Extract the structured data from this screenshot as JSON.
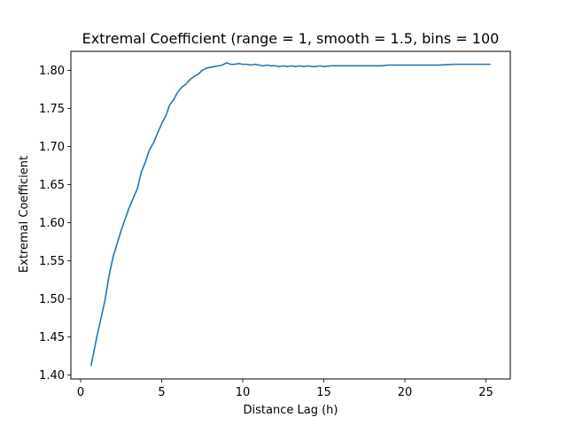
{
  "chart_data": {
    "type": "line",
    "title": "Extremal Coefficient (range = 1, smooth = 1.5, bins = 100",
    "xlabel": "Distance Lag (h)",
    "ylabel": "Extremal Coefficient",
    "xlim": [
      -0.6,
      26.5
    ],
    "ylim": [
      1.395,
      1.825
    ],
    "xticks": [
      0,
      5,
      10,
      15,
      20,
      25
    ],
    "xtick_labels": [
      "0",
      "5",
      "10",
      "15",
      "20",
      "25"
    ],
    "yticks": [
      1.4,
      1.45,
      1.5,
      1.55,
      1.6,
      1.65,
      1.7,
      1.75,
      1.8
    ],
    "ytick_labels": [
      "1.40",
      "1.45",
      "1.50",
      "1.55",
      "1.60",
      "1.65",
      "1.70",
      "1.75",
      "1.80"
    ],
    "grid": false,
    "line_color": "#1f77b4",
    "series": [
      {
        "x": [
          0.65,
          1.0,
          1.5,
          1.75,
          2.0,
          2.5,
          3.0,
          3.5,
          3.75,
          4.0,
          4.25,
          4.5,
          4.75,
          5.0,
          5.25,
          5.5,
          5.75,
          6.0,
          6.25,
          6.5,
          6.75,
          7.0,
          7.25,
          7.5,
          7.75,
          8.0,
          8.25,
          8.5,
          8.75,
          9.0,
          9.25,
          9.5,
          9.75,
          10.0,
          10.25,
          10.5,
          10.75,
          11.0,
          11.25,
          11.5,
          11.75,
          12.0,
          12.25,
          12.5,
          12.75,
          13.0,
          13.25,
          13.5,
          13.75,
          14.0,
          14.25,
          14.5,
          14.75,
          15.0,
          15.5,
          16.0,
          16.5,
          17.0,
          17.5,
          18.0,
          18.5,
          19.0,
          20.0,
          21.0,
          22.0,
          23.0,
          24.0,
          25.0,
          25.25
        ],
        "y": [
          1.413,
          1.45,
          1.498,
          1.53,
          1.555,
          1.59,
          1.62,
          1.645,
          1.667,
          1.68,
          1.696,
          1.705,
          1.718,
          1.73,
          1.74,
          1.755,
          1.762,
          1.772,
          1.778,
          1.782,
          1.788,
          1.792,
          1.795,
          1.8,
          1.803,
          1.804,
          1.805,
          1.806,
          1.807,
          1.81,
          1.808,
          1.808,
          1.809,
          1.808,
          1.808,
          1.807,
          1.808,
          1.807,
          1.806,
          1.807,
          1.806,
          1.806,
          1.805,
          1.806,
          1.805,
          1.806,
          1.805,
          1.806,
          1.805,
          1.806,
          1.805,
          1.805,
          1.806,
          1.805,
          1.806,
          1.806,
          1.806,
          1.806,
          1.806,
          1.806,
          1.806,
          1.807,
          1.807,
          1.807,
          1.807,
          1.808,
          1.808,
          1.808,
          1.808
        ]
      }
    ]
  }
}
